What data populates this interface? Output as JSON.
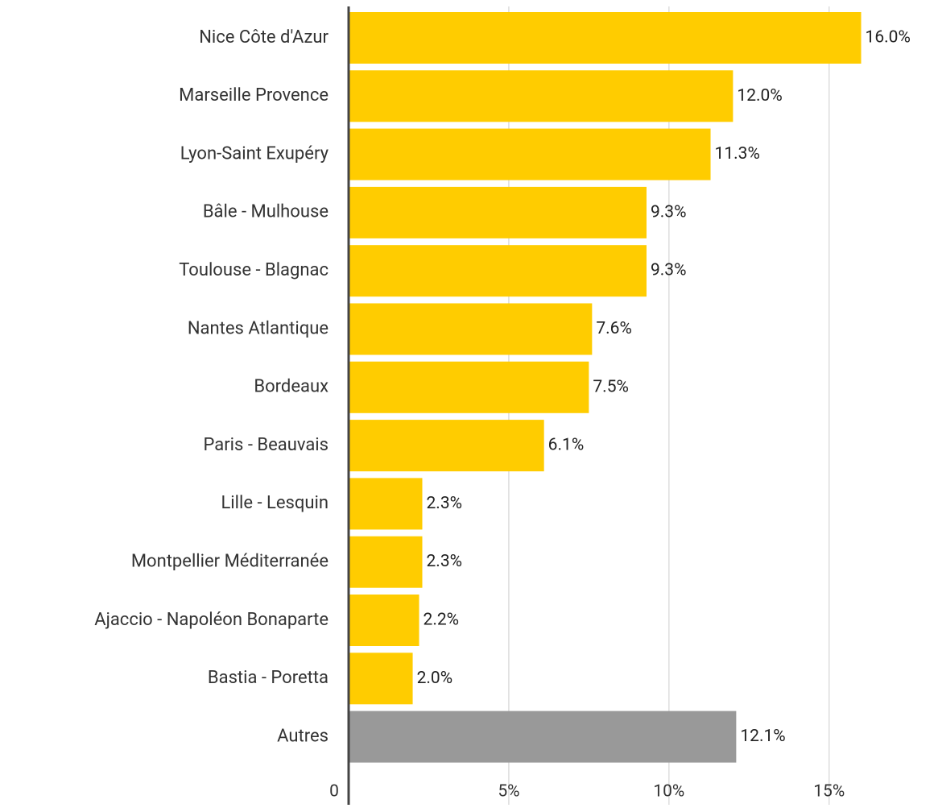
{
  "chart_data": {
    "type": "bar",
    "orientation": "horizontal",
    "categories": [
      "Nice Côte d'Azur",
      "Marseille Provence",
      "Lyon-Saint Exupéry",
      "Bâle - Mulhouse",
      "Toulouse - Blagnac",
      "Nantes Atlantique",
      "Bordeaux",
      "Paris - Beauvais",
      "Lille - Lesquin",
      "Montpellier Méditerranée",
      "Ajaccio - Napoléon Bonaparte",
      "Bastia - Poretta",
      "Autres"
    ],
    "values": [
      16.0,
      12.0,
      11.3,
      9.3,
      9.3,
      7.6,
      7.5,
      6.1,
      2.3,
      2.3,
      2.2,
      2.0,
      12.1
    ],
    "value_labels": [
      "16.0%",
      "12.0%",
      "11.3%",
      "9.3%",
      "9.3%",
      "7.6%",
      "7.5%",
      "6.1%",
      "2.3%",
      "2.3%",
      "2.2%",
      "2.0%",
      "12.1%"
    ],
    "colors": [
      "#ffcc00",
      "#ffcc00",
      "#ffcc00",
      "#ffcc00",
      "#ffcc00",
      "#ffcc00",
      "#ffcc00",
      "#ffcc00",
      "#ffcc00",
      "#ffcc00",
      "#ffcc00",
      "#ffcc00",
      "#999999"
    ],
    "xlim": [
      0,
      18.4
    ],
    "xticks": [
      0,
      {
        "value": 5,
        "label": "5%"
      },
      {
        "value": 10,
        "label": "10%"
      },
      {
        "value": 15,
        "label": "15%"
      }
    ],
    "grid": true
  }
}
